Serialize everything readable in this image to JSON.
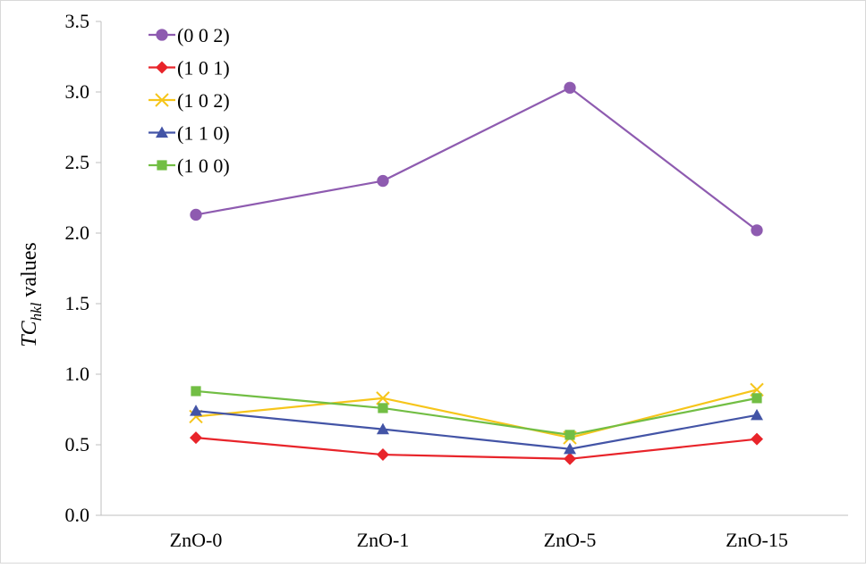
{
  "chart_data": {
    "type": "line",
    "categories": [
      "ZnO-0",
      "ZnO-1",
      "ZnO-5",
      "ZnO-15"
    ],
    "ylabel": {
      "main": "TC",
      "sub": "hkl",
      "suffix": " values"
    },
    "ylim": [
      0,
      3.5
    ],
    "yticks": [
      "0.0",
      "0.5",
      "1.0",
      "1.5",
      "2.0",
      "2.5",
      "3.0",
      "3.5"
    ],
    "grid": false,
    "legend_position": "top-left",
    "series": [
      {
        "name": "(0 0 2)",
        "color": "#8E5BB0",
        "marker": "circle",
        "values": [
          2.13,
          2.37,
          3.03,
          2.02
        ]
      },
      {
        "name": "(1 0 1)",
        "color": "#E8242A",
        "marker": "diamond",
        "values": [
          0.55,
          0.43,
          0.4,
          0.54
        ]
      },
      {
        "name": "(1 0 2)",
        "color": "#F6C51B",
        "marker": "x",
        "values": [
          0.7,
          0.83,
          0.55,
          0.89
        ]
      },
      {
        "name": "(1 1 0)",
        "color": "#4354A6",
        "marker": "triangle",
        "values": [
          0.74,
          0.61,
          0.47,
          0.71
        ]
      },
      {
        "name": "(1 0 0)",
        "color": "#72BE44",
        "marker": "square",
        "values": [
          0.88,
          0.76,
          0.57,
          0.83
        ]
      }
    ]
  }
}
